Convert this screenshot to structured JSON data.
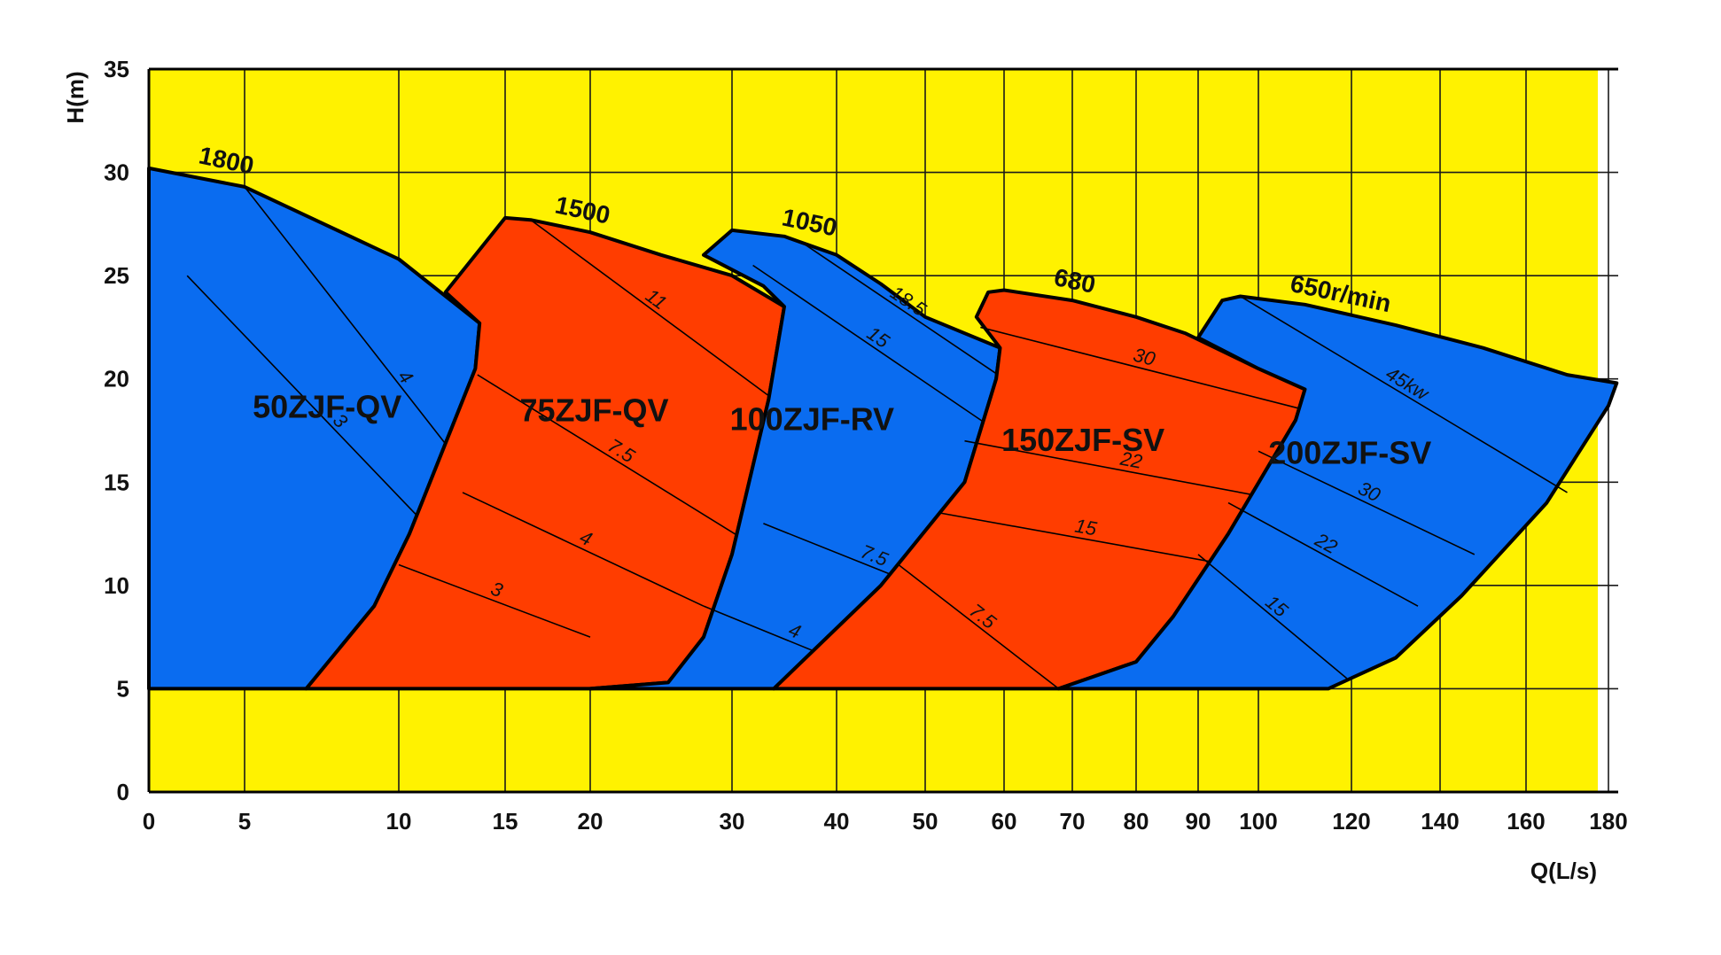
{
  "chart_data": {
    "type": "area",
    "title": "",
    "xlabel": "Q(L/s)",
    "ylabel": "H(m)",
    "xlim": [
      0,
      180
    ],
    "ylim": [
      0,
      35
    ],
    "x_scale": "non-uniform",
    "grid": true,
    "background_color": "#fff200",
    "x_ticks": [
      "0",
      "5",
      "10",
      "15",
      "20",
      "30",
      "40",
      "50",
      "60",
      "70",
      "80",
      "90",
      "100",
      "120",
      "140",
      "160",
      "180"
    ],
    "x_tick_values": [
      0,
      5,
      10,
      15,
      20,
      30,
      40,
      50,
      60,
      70,
      80,
      90,
      100,
      120,
      140,
      160,
      180
    ],
    "y_ticks": [
      "0",
      "5",
      "10",
      "15",
      "20",
      "25",
      "30",
      "35"
    ],
    "y_tick_values": [
      0,
      5,
      10,
      15,
      20,
      25,
      30,
      35
    ],
    "series": [
      {
        "name": "50ZJF-QV",
        "color": "#0a6cf0",
        "speed_label": "1800",
        "outline": [
          [
            0,
            5
          ],
          [
            0,
            30.2
          ],
          [
            5,
            29.3
          ],
          [
            10,
            25.8
          ],
          [
            13.8,
            22.7
          ],
          [
            13.6,
            20.5
          ],
          [
            10.5,
            12.5
          ],
          [
            9.2,
            9
          ],
          [
            7,
            5
          ]
        ],
        "power_lines": [
          {
            "label": "3",
            "points": [
              [
                2,
                25
              ],
              [
                14,
                10
              ]
            ]
          },
          {
            "label": "4",
            "points": [
              [
                5,
                29.3
              ],
              [
                18,
                10
              ]
            ]
          }
        ]
      },
      {
        "name": "75ZJF-QV",
        "color": "#ff3d00",
        "speed_label": "1500",
        "outline": [
          [
            7,
            5
          ],
          [
            9.2,
            9
          ],
          [
            10.5,
            12.5
          ],
          [
            13.6,
            20.5
          ],
          [
            13.8,
            22.7
          ],
          [
            12.2,
            24.2
          ],
          [
            15,
            27.8
          ],
          [
            16.5,
            27.7
          ],
          [
            20,
            27.1
          ],
          [
            25,
            26
          ],
          [
            30,
            25
          ],
          [
            35,
            23.5
          ],
          [
            33.5,
            19
          ],
          [
            30,
            11.5
          ],
          [
            28,
            7.5
          ],
          [
            25.5,
            5.3
          ],
          [
            20,
            5
          ]
        ],
        "power_lines": [
          {
            "label": "3",
            "points": [
              [
                10,
                11
              ],
              [
                20,
                7.5
              ]
            ]
          },
          {
            "label": "4",
            "points": [
              [
                13,
                14.5
              ],
              [
                28,
                9
              ]
            ]
          },
          {
            "label": "7.5",
            "points": [
              [
                13.7,
                20.2
              ],
              [
                32.5,
                11.8
              ]
            ]
          },
          {
            "label": "11",
            "points": [
              [
                16.5,
                27.7
              ],
              [
                34,
                19
              ]
            ]
          }
        ]
      },
      {
        "name": "100ZJF-RV",
        "color": "#0a6cf0",
        "speed_label": "1050",
        "outline": [
          [
            20,
            5
          ],
          [
            25.5,
            5.3
          ],
          [
            28,
            7.5
          ],
          [
            30,
            11.5
          ],
          [
            33.5,
            19
          ],
          [
            35,
            23.5
          ],
          [
            33,
            24.5
          ],
          [
            28,
            26
          ],
          [
            30,
            27.2
          ],
          [
            35,
            26.9
          ],
          [
            40,
            26
          ],
          [
            45,
            24.6
          ],
          [
            50,
            23
          ],
          [
            59.5,
            21.5
          ],
          [
            59,
            20
          ],
          [
            55,
            15
          ],
          [
            45,
            10
          ],
          [
            34,
            5
          ],
          [
            30,
            5
          ]
        ],
        "power_lines": [
          {
            "label": "4",
            "points": [
              [
                28,
                9
              ],
              [
                45,
                5.5
              ]
            ]
          },
          {
            "label": "7.5",
            "points": [
              [
                33,
                13
              ],
              [
                57,
                8.8
              ]
            ]
          },
          {
            "label": "15",
            "points": [
              [
                32,
                25.5
              ],
              [
                59,
                17.5
              ]
            ]
          },
          {
            "label": "18.5",
            "points": [
              [
                37,
                26.5
              ],
              [
                60,
                20
              ]
            ]
          }
        ]
      },
      {
        "name": "150ZJF-SV",
        "color": "#ff3d00",
        "speed_label": "680",
        "outline": [
          [
            34,
            5
          ],
          [
            45,
            10
          ],
          [
            55,
            15
          ],
          [
            59,
            20
          ],
          [
            59.5,
            21.5
          ],
          [
            56.5,
            23
          ],
          [
            58,
            24.2
          ],
          [
            60,
            24.3
          ],
          [
            70,
            23.8
          ],
          [
            80,
            23
          ],
          [
            88,
            22.2
          ],
          [
            100,
            20.5
          ],
          [
            110,
            19.5
          ],
          [
            108,
            18
          ],
          [
            95,
            12.5
          ],
          [
            86,
            8.5
          ],
          [
            80,
            6.3
          ],
          [
            68,
            5
          ],
          [
            50,
            5
          ]
        ],
        "power_lines": [
          {
            "label": "7.5",
            "points": [
              [
                47,
                11
              ],
              [
                68,
                5
              ]
            ]
          },
          {
            "label": "15",
            "points": [
              [
                52,
                13.5
              ],
              [
                95,
                11
              ]
            ]
          },
          {
            "label": "22",
            "points": [
              [
                55,
                17
              ],
              [
                108,
                14
              ]
            ]
          },
          {
            "label": "30",
            "points": [
              [
                57,
                22.5
              ],
              [
                110,
                18.5
              ]
            ]
          }
        ]
      },
      {
        "name": "200ZJF-SV",
        "color": "#0a6cf0",
        "speed_label": "650r/min",
        "outline": [
          [
            68,
            5
          ],
          [
            80,
            6.3
          ],
          [
            86,
            8.5
          ],
          [
            95,
            12.5
          ],
          [
            108,
            18
          ],
          [
            110,
            19.5
          ],
          [
            100,
            20.5
          ],
          [
            90,
            22
          ],
          [
            94,
            23.8
          ],
          [
            97,
            24
          ],
          [
            110,
            23.6
          ],
          [
            130,
            22.6
          ],
          [
            150,
            21.5
          ],
          [
            170,
            20.2
          ],
          [
            182,
            19.8
          ],
          [
            180,
            18.7
          ],
          [
            165,
            14
          ],
          [
            145,
            9.5
          ],
          [
            130,
            6.5
          ],
          [
            115,
            5
          ],
          [
            108,
            5
          ]
        ],
        "power_lines": [
          {
            "label": "15",
            "points": [
              [
                90,
                11.5
              ],
              [
                119,
                5.5
              ]
            ]
          },
          {
            "label": "22",
            "points": [
              [
                95,
                14
              ],
              [
                135,
                9
              ]
            ]
          },
          {
            "label": "30",
            "points": [
              [
                100,
                16.5
              ],
              [
                148,
                11.5
              ]
            ]
          },
          {
            "label": "45kw",
            "points": [
              [
                97,
                24
              ],
              [
                170,
                14.5
              ]
            ]
          }
        ]
      }
    ]
  }
}
